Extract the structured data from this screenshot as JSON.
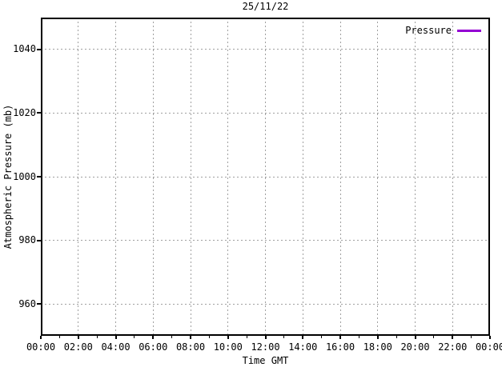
{
  "title": "25/11/22",
  "legend": {
    "entries": [
      {
        "label": "Pressure",
        "color": "#9400d3"
      }
    ]
  },
  "axes": {
    "x": {
      "label": "Time GMT",
      "tick_labels": [
        "00:00",
        "02:00",
        "04:00",
        "06:00",
        "08:00",
        "10:00",
        "12:00",
        "14:00",
        "16:00",
        "18:00",
        "20:00",
        "22:00",
        "00:00"
      ],
      "major_tick_hours": [
        0,
        2,
        4,
        6,
        8,
        10,
        12,
        14,
        16,
        18,
        20,
        22,
        24
      ],
      "minor_tick_hours": [
        1,
        3,
        5,
        7,
        9,
        11,
        13,
        15,
        17,
        19,
        21,
        23
      ],
      "gridline_hours": [
        2,
        4,
        6,
        8,
        10,
        12,
        14,
        16,
        18,
        20,
        22
      ],
      "range_hours": [
        0,
        24
      ]
    },
    "y": {
      "label": "Atmospheric Pressure (mb)",
      "tick_values": [
        1040,
        1020,
        1000,
        980,
        960
      ],
      "range": [
        950,
        1050
      ]
    }
  },
  "colors": {
    "background": "#ffffff",
    "axis": "#000000",
    "grid": "#a0a0a0",
    "pressure_line": "#9400d3"
  },
  "chart_data": {
    "type": "line",
    "title": "25/11/22",
    "xlabel": "Time GMT",
    "ylabel": "Atmospheric Pressure (mb)",
    "x_tick_labels": [
      "00:00",
      "02:00",
      "04:00",
      "06:00",
      "08:00",
      "10:00",
      "12:00",
      "14:00",
      "16:00",
      "18:00",
      "20:00",
      "22:00",
      "00:00"
    ],
    "xlim_hours": [
      0,
      24
    ],
    "ylim": [
      950,
      1050
    ],
    "y_ticks": [
      960,
      980,
      1000,
      1020,
      1040
    ],
    "grid": true,
    "legend_position": "top-right-inside",
    "series": [
      {
        "name": "Pressure",
        "color": "#9400d3",
        "x": [],
        "values": []
      }
    ]
  }
}
